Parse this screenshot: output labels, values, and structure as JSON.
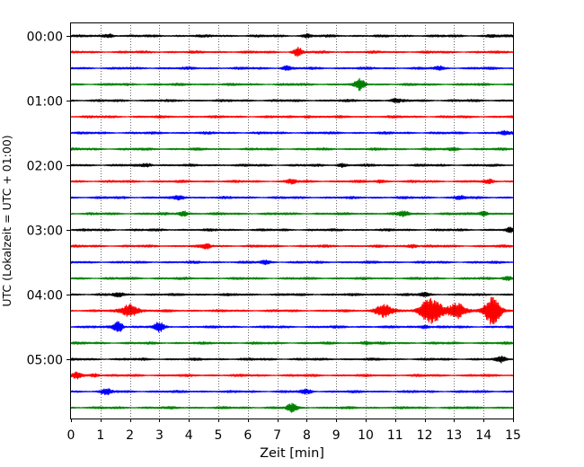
{
  "chart_data": {
    "type": "line",
    "xlabel": "Zeit  [min]",
    "ylabel": "UTC (Lokalzeit = UTC + 01:00)",
    "xlim": [
      0,
      15
    ],
    "xticks": [
      0,
      1,
      2,
      3,
      4,
      5,
      6,
      7,
      8,
      9,
      10,
      11,
      12,
      13,
      14,
      15
    ],
    "yticklabels": [
      "00:00",
      "01:00",
      "02:00",
      "03:00",
      "04:00",
      "05:00"
    ],
    "grid": "vertical dotted",
    "trace_colors": [
      "#000000",
      "#ff0000",
      "#0000ff",
      "#008000"
    ],
    "traces": [
      {
        "start": "00:00",
        "bursts": [
          [
            1.3,
            0.6
          ],
          [
            8.0,
            0.5
          ],
          [
            14.3,
            0.4
          ]
        ]
      },
      {
        "start": "00:15",
        "bursts": [
          [
            7.7,
            1.5
          ]
        ]
      },
      {
        "start": "00:30",
        "bursts": [
          [
            7.3,
            0.6
          ],
          [
            12.5,
            0.5
          ]
        ]
      },
      {
        "start": "00:45",
        "bursts": [
          [
            9.8,
            1.8
          ]
        ]
      },
      {
        "start": "01:00",
        "bursts": [
          [
            11.0,
            0.6
          ]
        ]
      },
      {
        "start": "01:15",
        "bursts": [
          [
            8.0,
            0.4
          ]
        ]
      },
      {
        "start": "01:30",
        "bursts": [
          [
            14.7,
            0.4
          ]
        ]
      },
      {
        "start": "01:45",
        "bursts": [
          [
            13.0,
            0.4
          ]
        ]
      },
      {
        "start": "02:00",
        "bursts": [
          [
            2.6,
            0.5
          ],
          [
            9.2,
            0.5
          ]
        ]
      },
      {
        "start": "02:15",
        "bursts": [
          [
            7.5,
            0.7
          ],
          [
            10.5,
            0.5
          ],
          [
            14.2,
            0.5
          ]
        ]
      },
      {
        "start": "02:30",
        "bursts": [
          [
            3.7,
            0.6
          ],
          [
            13.2,
            0.5
          ]
        ]
      },
      {
        "start": "02:45",
        "bursts": [
          [
            3.8,
            0.9
          ],
          [
            11.3,
            0.9
          ],
          [
            14.0,
            0.8
          ]
        ]
      },
      {
        "start": "03:00",
        "bursts": [
          [
            14.9,
            0.6
          ]
        ]
      },
      {
        "start": "03:15",
        "bursts": [
          [
            4.6,
            0.7
          ],
          [
            11.6,
            0.6
          ]
        ]
      },
      {
        "start": "03:30",
        "bursts": [
          [
            6.6,
            0.5
          ]
        ]
      },
      {
        "start": "03:45",
        "bursts": [
          [
            14.8,
            0.7
          ]
        ]
      },
      {
        "start": "04:00",
        "bursts": [
          [
            1.6,
            0.6
          ],
          [
            12.0,
            0.6
          ]
        ]
      },
      {
        "start": "04:15",
        "bursts": [
          [
            2.0,
            2.2
          ],
          [
            10.6,
            2.2
          ],
          [
            12.1,
            3.4
          ],
          [
            12.4,
            2.6
          ],
          [
            13.1,
            2.6
          ],
          [
            14.3,
            5.0
          ]
        ]
      },
      {
        "start": "04:30",
        "bursts": [
          [
            1.6,
            2.0
          ],
          [
            3.0,
            1.5
          ],
          [
            12.0,
            0.6
          ]
        ]
      },
      {
        "start": "04:45",
        "bursts": [
          [
            10.0,
            0.5
          ]
        ]
      },
      {
        "start": "05:00",
        "bursts": [
          [
            14.6,
            0.9
          ]
        ]
      },
      {
        "start": "05:15",
        "bursts": [
          [
            0.2,
            1.0
          ],
          [
            0.8,
            0.6
          ]
        ]
      },
      {
        "start": "05:30",
        "bursts": [
          [
            1.2,
            1.0
          ],
          [
            8.0,
            0.6
          ]
        ]
      },
      {
        "start": "05:45",
        "bursts": [
          [
            7.5,
            1.4
          ]
        ]
      }
    ]
  }
}
